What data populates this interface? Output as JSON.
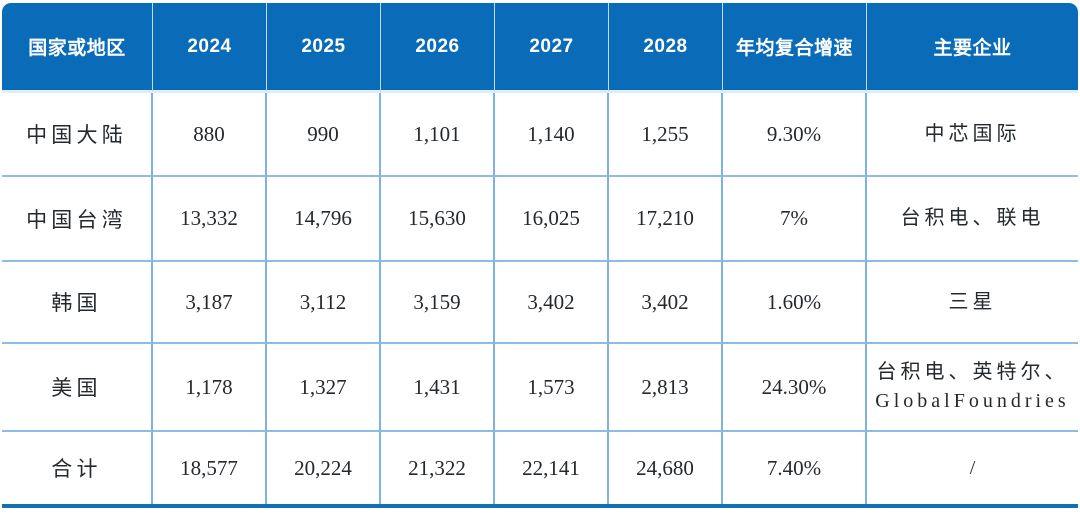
{
  "chart_data": {
    "type": "table",
    "columns": [
      "国家或地区",
      "2024",
      "2025",
      "2026",
      "2027",
      "2028",
      "年均复合增速",
      "主要企业"
    ],
    "rows": [
      [
        "中国大陆",
        "880",
        "990",
        "1,101",
        "1,140",
        "1,255",
        "9.30%",
        "中芯国际"
      ],
      [
        "中国台湾",
        "13,332",
        "14,796",
        "15,630",
        "16,025",
        "17,210",
        "7%",
        "台积电、联电"
      ],
      [
        "韩国",
        "3,187",
        "3,112",
        "3,159",
        "3,402",
        "3,402",
        "1.60%",
        "三星"
      ],
      [
        "美国",
        "1,178",
        "1,327",
        "1,431",
        "1,573",
        "2,813",
        "24.30%",
        "台积电、英特尔、\nGlobalFoundries"
      ],
      [
        "合计",
        "18,577",
        "20,224",
        "21,322",
        "22,141",
        "24,680",
        "7.40%",
        "/"
      ]
    ],
    "numeric": {
      "regions": [
        "中国大陆",
        "中国台湾",
        "韩国",
        "美国",
        "合计"
      ],
      "years": [
        2024,
        2025,
        2026,
        2027,
        2028
      ],
      "values": [
        [
          880,
          990,
          1101,
          1140,
          1255
        ],
        [
          13332,
          14796,
          15630,
          16025,
          17210
        ],
        [
          3187,
          3112,
          3159,
          3402,
          3402
        ],
        [
          1178,
          1327,
          1431,
          1573,
          2813
        ],
        [
          18577,
          20224,
          21322,
          22141,
          24680
        ]
      ],
      "cagr_percent": [
        9.3,
        7,
        1.6,
        24.3,
        7.4
      ],
      "main_companies": [
        [
          "中芯国际"
        ],
        [
          "台积电",
          "联电"
        ],
        [
          "三星"
        ],
        [
          "台积电",
          "英特尔",
          "GlobalFoundries"
        ],
        []
      ]
    },
    "layout_hints": {
      "grid": "on",
      "header_position": "top"
    },
    "colors": {
      "header_background": "#0a6cb8",
      "header_text": "#ffffff",
      "body_text": "#24292e",
      "grid_border": "#7fb2de",
      "row_separator": "#8cbde4",
      "header_underline": "#ddeefa",
      "bottom_bar": "#1470b4",
      "page_background": "#ffffff"
    }
  }
}
